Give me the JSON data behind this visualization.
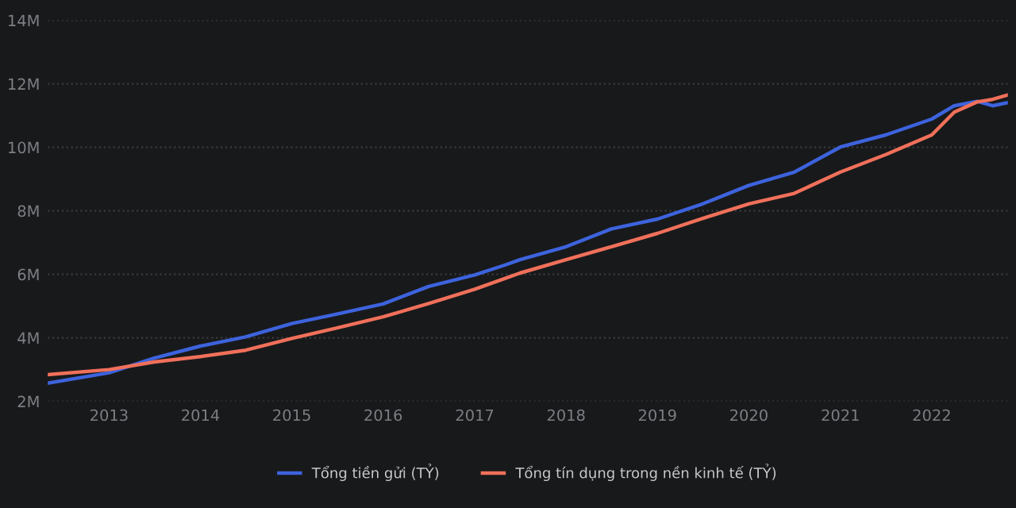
{
  "chart_data": {
    "type": "line",
    "x": [
      "2012-05",
      "2013-01",
      "2013-07",
      "2014-01",
      "2014-07",
      "2015-01",
      "2015-07",
      "2016-01",
      "2016-07",
      "2017-01",
      "2017-05",
      "2017-07",
      "2018-01",
      "2018-07",
      "2019-01",
      "2019-07",
      "2020-01",
      "2020-07",
      "2021-01",
      "2021-07",
      "2022-01",
      "2022-04",
      "2022-07",
      "2022-09",
      "2022-11"
    ],
    "series": [
      {
        "name": "Tổng tiền gửi (TỶ)",
        "color": "#3d63dd",
        "values": [
          2.57,
          2.9,
          3.36,
          3.74,
          4.03,
          4.45,
          4.75,
          5.07,
          5.62,
          5.98,
          6.29,
          6.46,
          6.87,
          7.43,
          7.74,
          8.22,
          8.8,
          9.22,
          10.01,
          10.39,
          10.89,
          11.31,
          11.45,
          11.31,
          11.41
        ]
      },
      {
        "name": "Tổng tín dụng trong nền kinh tế (TỶ)",
        "color": "#f0705a",
        "values": [
          2.84,
          3.0,
          3.24,
          3.41,
          3.61,
          3.98,
          4.31,
          4.66,
          5.08,
          5.53,
          5.87,
          6.04,
          6.46,
          6.87,
          7.29,
          7.76,
          8.22,
          8.55,
          9.22,
          9.77,
          10.39,
          11.11,
          11.43,
          11.51,
          11.65
        ]
      }
    ],
    "xlim": [
      "2012-05",
      "2022-11"
    ],
    "xticks": [
      {
        "value": "2013-01",
        "label": "2013"
      },
      {
        "value": "2014-01",
        "label": "2014"
      },
      {
        "value": "2015-01",
        "label": "2015"
      },
      {
        "value": "2016-01",
        "label": "2016"
      },
      {
        "value": "2017-01",
        "label": "2017"
      },
      {
        "value": "2018-01",
        "label": "2018"
      },
      {
        "value": "2019-01",
        "label": "2019"
      },
      {
        "value": "2020-01",
        "label": "2020"
      },
      {
        "value": "2021-01",
        "label": "2021"
      },
      {
        "value": "2022-01",
        "label": "2022"
      }
    ],
    "ylim": [
      2,
      14
    ],
    "yticks": [
      {
        "value": 2,
        "label": "2M"
      },
      {
        "value": 4,
        "label": "4M"
      },
      {
        "value": 6,
        "label": "6M"
      },
      {
        "value": 8,
        "label": "8M"
      },
      {
        "value": 10,
        "label": "10M"
      },
      {
        "value": 12,
        "label": "12M"
      },
      {
        "value": 14,
        "label": "14M"
      }
    ],
    "grid": "y",
    "legend": "bottom",
    "marker": "none",
    "line_style": "solid"
  }
}
